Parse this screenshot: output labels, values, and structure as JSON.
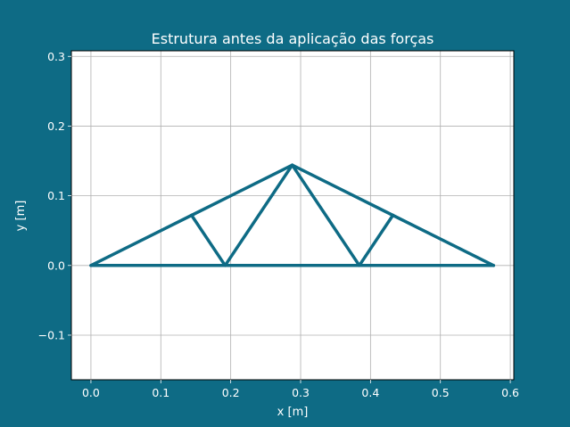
{
  "chart_data": {
    "type": "line",
    "title": "Estrutura antes da aplicação das forças",
    "xlabel": "x [m]",
    "ylabel": "y [m]",
    "xlim": [
      -0.028,
      0.605
    ],
    "ylim": [
      -0.164,
      0.308
    ],
    "grid": true,
    "x_ticks": [
      0.0,
      0.1,
      0.2,
      0.3,
      0.4,
      0.5,
      0.6
    ],
    "x_tick_labels": [
      "0.0",
      "0.1",
      "0.2",
      "0.3",
      "0.4",
      "0.5",
      "0.6"
    ],
    "y_ticks": [
      -0.1,
      0.0,
      0.1,
      0.2,
      0.3
    ],
    "y_tick_labels": [
      "−0.1",
      "0.0",
      "0.1",
      "0.2",
      "0.3"
    ],
    "line_color": "#0e6b85",
    "nodes": [
      {
        "x": 0.0,
        "y": 0.0
      },
      {
        "x": 0.192,
        "y": 0.0
      },
      {
        "x": 0.384,
        "y": 0.0
      },
      {
        "x": 0.576,
        "y": 0.0
      },
      {
        "x": 0.144,
        "y": 0.072
      },
      {
        "x": 0.288,
        "y": 0.144
      },
      {
        "x": 0.432,
        "y": 0.072
      }
    ],
    "members": [
      [
        0,
        1
      ],
      [
        1,
        2
      ],
      [
        2,
        3
      ],
      [
        0,
        4
      ],
      [
        4,
        5
      ],
      [
        5,
        6
      ],
      [
        6,
        3
      ],
      [
        4,
        1
      ],
      [
        1,
        5
      ],
      [
        5,
        2
      ],
      [
        2,
        6
      ]
    ]
  }
}
